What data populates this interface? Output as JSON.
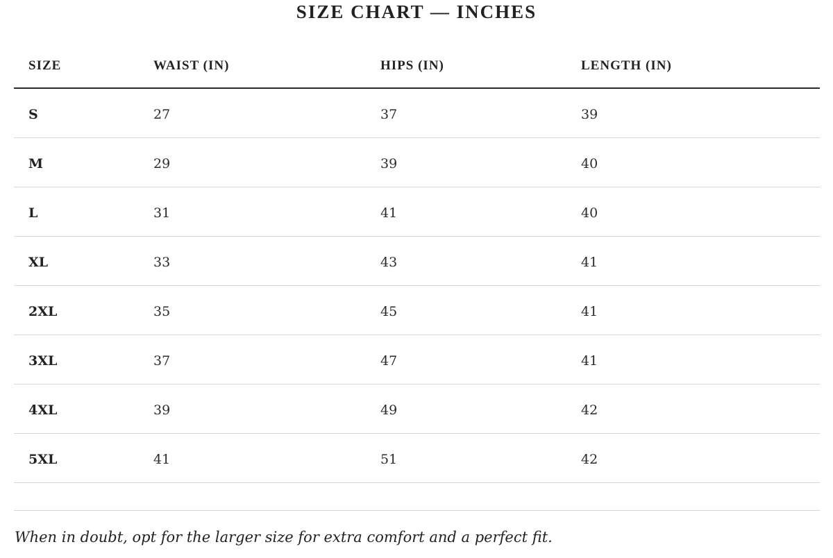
{
  "title": "SIZE CHART — INCHES",
  "table": {
    "headers": [
      "SIZE",
      "WAIST (IN)",
      "HIPS (IN)",
      "LENGTH (IN)"
    ],
    "rows": [
      [
        "S",
        "27",
        "37",
        "39"
      ],
      [
        "M",
        "29",
        "39",
        "40"
      ],
      [
        "L",
        "31",
        "41",
        "40"
      ],
      [
        "XL",
        "33",
        "43",
        "41"
      ],
      [
        "2XL",
        "35",
        "45",
        "41"
      ],
      [
        "3XL",
        "37",
        "47",
        "41"
      ],
      [
        "4XL",
        "39",
        "49",
        "42"
      ],
      [
        "5XL",
        "41",
        "51",
        "42"
      ]
    ]
  },
  "note": "When in doubt, opt for the larger size for extra comfort and a perfect fit."
}
